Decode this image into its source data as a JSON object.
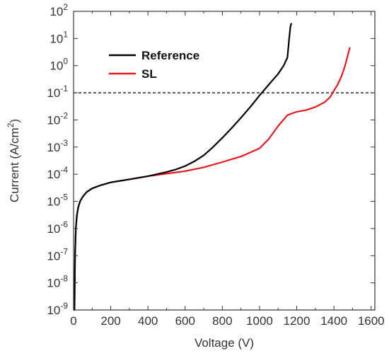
{
  "chart_data": {
    "type": "line",
    "xlabel": "Voltage (V)",
    "ylabel": {
      "prefix": "Current (A/cm",
      "superscript": "2",
      "suffix": ")"
    },
    "x_ticks": [
      0,
      200,
      400,
      600,
      800,
      1000,
      1200,
      1400,
      1600
    ],
    "xlim": [
      0,
      1620
    ],
    "ylim": [
      1e-09,
      100
    ],
    "y_scale": "log",
    "y_ticks": [
      {
        "base": "10",
        "exp": "-9",
        "value": 1e-09
      },
      {
        "base": "10",
        "exp": "-8",
        "value": 1e-08
      },
      {
        "base": "10",
        "exp": "-7",
        "value": 1e-07
      },
      {
        "base": "10",
        "exp": "-6",
        "value": 1e-06
      },
      {
        "base": "10",
        "exp": "-5",
        "value": 1e-05
      },
      {
        "base": "10",
        "exp": "-4",
        "value": 0.0001
      },
      {
        "base": "10",
        "exp": "-3",
        "value": 0.001
      },
      {
        "base": "10",
        "exp": "-2",
        "value": 0.01
      },
      {
        "base": "10",
        "exp": "-1",
        "value": 0.1
      },
      {
        "base": "10",
        "exp": "0",
        "value": 1
      },
      {
        "base": "10",
        "exp": "1",
        "value": 10
      },
      {
        "base": "10",
        "exp": "2",
        "value": 100
      }
    ],
    "legend_position": "top-left",
    "reference_line": {
      "y": 0.1,
      "style": "dashed",
      "color": "#000000"
    },
    "series": [
      {
        "name": "Reference",
        "color": "#000000",
        "x": [
          5,
          8,
          12,
          18,
          25,
          35,
          50,
          70,
          100,
          150,
          200,
          300,
          400,
          500,
          550,
          600,
          650,
          700,
          750,
          800,
          850,
          900,
          950,
          1000,
          1050,
          1100,
          1130,
          1150,
          1158,
          1165,
          1170
        ],
        "y": [
          1e-09,
          1e-07,
          1e-06,
          3e-06,
          6e-06,
          1e-05,
          1.5e-05,
          2.2e-05,
          3e-05,
          4e-05,
          5e-05,
          6.5e-05,
          8.5e-05,
          0.00012,
          0.00015,
          0.0002,
          0.0003,
          0.0005,
          0.001,
          0.0022,
          0.005,
          0.012,
          0.03,
          0.08,
          0.2,
          0.5,
          1,
          2,
          8,
          25,
          35
        ]
      },
      {
        "name": "SL",
        "color": "#e8191e",
        "x": [
          5,
          8,
          12,
          18,
          25,
          35,
          50,
          70,
          100,
          150,
          200,
          300,
          400,
          500,
          600,
          700,
          800,
          900,
          1000,
          1050,
          1100,
          1150,
          1200,
          1250,
          1300,
          1350,
          1380,
          1400,
          1420,
          1440,
          1460,
          1475,
          1485
        ],
        "y": [
          1e-09,
          1e-07,
          1e-06,
          3e-06,
          6e-06,
          1e-05,
          1.5e-05,
          2.2e-05,
          3e-05,
          4e-05,
          5e-05,
          6.5e-05,
          8.5e-05,
          0.000105,
          0.00013,
          0.00018,
          0.00028,
          0.00045,
          0.0009,
          0.002,
          0.006,
          0.015,
          0.02,
          0.023,
          0.03,
          0.045,
          0.07,
          0.12,
          0.2,
          0.4,
          1,
          2.5,
          4.5
        ]
      }
    ]
  }
}
